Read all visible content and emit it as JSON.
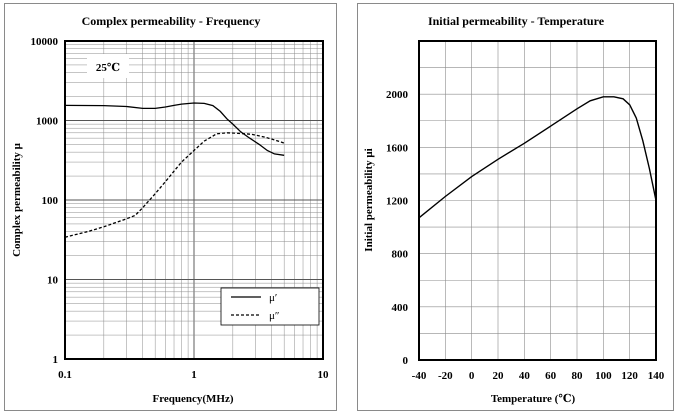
{
  "chart_data": [
    {
      "type": "line",
      "title": "Complex permeability - Frequency",
      "xlabel": "Frequency(MHz)",
      "ylabel": "Complex permeability μ",
      "xscale": "log",
      "yscale": "log",
      "xlim": [
        0.1,
        10
      ],
      "ylim": [
        1,
        10000
      ],
      "x_ticks": [
        "0.1",
        "1",
        "10"
      ],
      "y_ticks": [
        "1",
        "10",
        "100",
        "1000",
        "10000"
      ],
      "annotation": "25℃",
      "grid": true,
      "legend_position": "bottom-right",
      "series": [
        {
          "name": "μ′",
          "style": "solid",
          "points": [
            [
              0.1,
              1550
            ],
            [
              0.2,
              1540
            ],
            [
              0.3,
              1500
            ],
            [
              0.4,
              1420
            ],
            [
              0.5,
              1420
            ],
            [
              0.6,
              1480
            ],
            [
              0.7,
              1550
            ],
            [
              0.8,
              1610
            ],
            [
              1.0,
              1660
            ],
            [
              1.2,
              1640
            ],
            [
              1.4,
              1540
            ],
            [
              1.6,
              1300
            ],
            [
              1.8,
              1050
            ],
            [
              2.0,
              900
            ],
            [
              2.3,
              720
            ],
            [
              2.7,
              600
            ],
            [
              3.2,
              500
            ],
            [
              3.7,
              420
            ],
            [
              4.2,
              380
            ],
            [
              5.0,
              365
            ]
          ]
        },
        {
          "name": "μ″",
          "style": "dashed",
          "points": [
            [
              0.1,
              34
            ],
            [
              0.15,
              40
            ],
            [
              0.2,
              46
            ],
            [
              0.3,
              58
            ],
            [
              0.35,
              64
            ],
            [
              0.4,
              80
            ],
            [
              0.5,
              120
            ],
            [
              0.6,
              170
            ],
            [
              0.7,
              230
            ],
            [
              0.8,
              300
            ],
            [
              1.0,
              420
            ],
            [
              1.2,
              550
            ],
            [
              1.5,
              680
            ],
            [
              1.8,
              700
            ],
            [
              2.2,
              690
            ],
            [
              2.8,
              670
            ],
            [
              3.5,
              620
            ],
            [
              4.2,
              570
            ],
            [
              5.0,
              520
            ]
          ]
        }
      ]
    },
    {
      "type": "line",
      "title": "Initial permeability - Temperature",
      "xlabel": "Temperature (℃)",
      "ylabel": "Initial permeability μi",
      "xlim": [
        -40,
        140
      ],
      "ylim": [
        0,
        2400
      ],
      "x_ticks": [
        "-40",
        "-20",
        "0",
        "20",
        "40",
        "60",
        "80",
        "100",
        "120",
        "140"
      ],
      "y_ticks": [
        "0",
        "400",
        "800",
        "1200",
        "1600",
        "2000"
      ],
      "grid": true,
      "series": [
        {
          "style": "solid",
          "points": [
            [
              -40,
              1070
            ],
            [
              -20,
              1230
            ],
            [
              0,
              1380
            ],
            [
              20,
              1510
            ],
            [
              40,
              1630
            ],
            [
              60,
              1760
            ],
            [
              80,
              1890
            ],
            [
              90,
              1950
            ],
            [
              100,
              1980
            ],
            [
              108,
              1980
            ],
            [
              115,
              1965
            ],
            [
              120,
              1920
            ],
            [
              125,
              1820
            ],
            [
              130,
              1650
            ],
            [
              135,
              1440
            ],
            [
              140,
              1200
            ]
          ]
        }
      ]
    }
  ]
}
